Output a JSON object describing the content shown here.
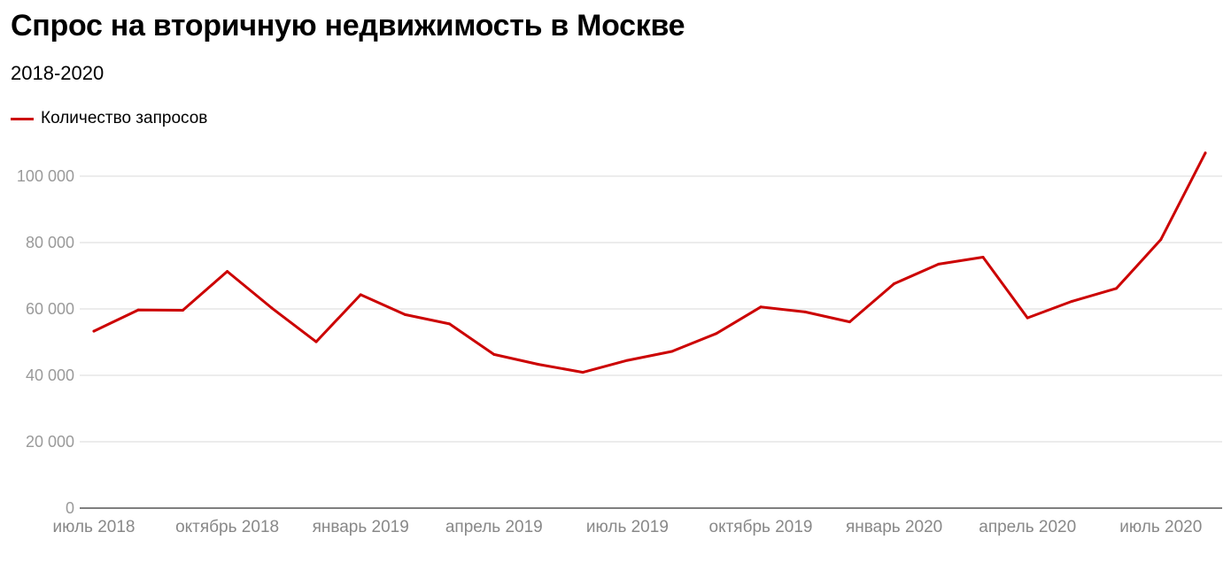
{
  "title": "Спрос на вторичную недвижимость в Москве",
  "subtitle": "2018-2020",
  "colors": {
    "series": "#cc0000",
    "grid": "#e6e6e6",
    "axis": "#555555"
  },
  "chart_data": {
    "type": "line",
    "title": "Спрос на вторичную недвижимость в Москве",
    "subtitle": "2018-2020",
    "xlabel": "",
    "ylabel": "",
    "ylim": [
      0,
      110000
    ],
    "grid": true,
    "legend": "top-left",
    "y_ticks": [
      0,
      20000,
      40000,
      60000,
      80000,
      100000
    ],
    "y_tick_labels": [
      "0",
      "20 000",
      "40 000",
      "60 000",
      "80 000",
      "100 000"
    ],
    "x_tick_labels": [
      {
        "label": "июль 2018",
        "index": 0
      },
      {
        "label": "октябрь 2018",
        "index": 3
      },
      {
        "label": "январь 2019",
        "index": 6
      },
      {
        "label": "апрель 2019",
        "index": 9
      },
      {
        "label": "июль 2019",
        "index": 12
      },
      {
        "label": "октябрь 2019",
        "index": 15
      },
      {
        "label": "январь 2020",
        "index": 18
      },
      {
        "label": "апрель 2020",
        "index": 21
      },
      {
        "label": "июль 2020",
        "index": 24
      }
    ],
    "categories": [
      "2018-07",
      "2018-08",
      "2018-09",
      "2018-10",
      "2018-11",
      "2018-12",
      "2019-01",
      "2019-02",
      "2019-03",
      "2019-04",
      "2019-05",
      "2019-06",
      "2019-07",
      "2019-08",
      "2019-09",
      "2019-10",
      "2019-11",
      "2019-12",
      "2020-01",
      "2020-02",
      "2020-03",
      "2020-04",
      "2020-05",
      "2020-06",
      "2020-07",
      "2020-08"
    ],
    "series": [
      {
        "name": "Количество запросов",
        "color": "#cc0000",
        "values": [
          53300,
          59700,
          59600,
          71300,
          60300,
          50100,
          64300,
          58300,
          55500,
          46300,
          43300,
          40900,
          44500,
          47200,
          52600,
          60600,
          59100,
          56100,
          67600,
          73500,
          75600,
          57300,
          62300,
          66200,
          80900,
          107000
        ]
      }
    ]
  }
}
